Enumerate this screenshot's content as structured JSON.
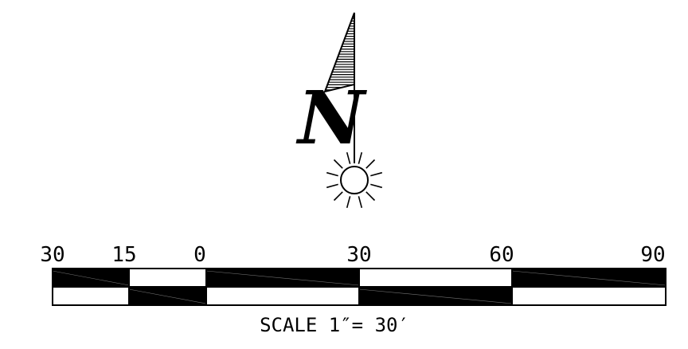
{
  "north_arrow": {
    "letter": "N",
    "icon": "north-arrow-icon",
    "sun_icon": "sun-icon"
  },
  "scale_bar": {
    "ticks": [
      "30",
      "15",
      "0",
      "30",
      "60",
      "90"
    ],
    "caption": "SCALE 1″= 30′"
  },
  "colors": {
    "ink": "#000000",
    "paper": "#ffffff"
  }
}
